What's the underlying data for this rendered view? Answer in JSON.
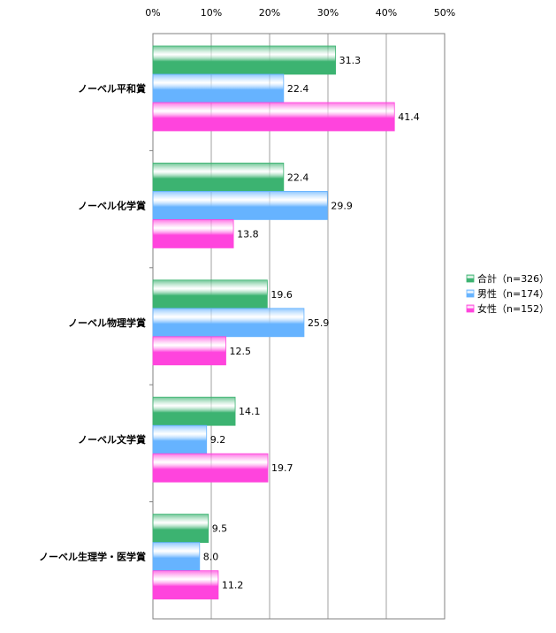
{
  "chart_data": {
    "type": "bar",
    "orientation": "horizontal",
    "categories": [
      "ノーベル平和賞",
      "ノーベル化学賞",
      "ノーベル物理学賞",
      "ノーベル文学賞",
      "ノーベル生理学・医学賞"
    ],
    "series": [
      {
        "name": "合計（n=326）",
        "color": "#3cb371",
        "values": [
          31.3,
          22.4,
          19.6,
          14.1,
          9.5
        ]
      },
      {
        "name": "男性（n=174）",
        "color": "#66b3ff",
        "values": [
          22.4,
          29.9,
          25.9,
          9.2,
          8.0
        ]
      },
      {
        "name": "女性（n=152）",
        "color": "#ff44dd",
        "values": [
          41.4,
          13.8,
          12.5,
          19.7,
          11.2
        ]
      }
    ],
    "xlim": [
      0,
      50
    ],
    "xticks": [
      "0%",
      "10%",
      "20%",
      "30%",
      "40%",
      "50%"
    ],
    "value_labels": [
      [
        "31.3",
        "22.4",
        "19.6",
        "14.1",
        "9.5"
      ],
      [
        "22.4",
        "29.9",
        "25.9",
        "9.2",
        "8.0"
      ],
      [
        "41.4",
        "13.8",
        "12.5",
        "19.7",
        "11.2"
      ]
    ],
    "grid": true,
    "legend_position": "right"
  }
}
